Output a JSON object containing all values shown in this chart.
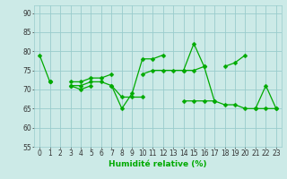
{
  "x": [
    0,
    1,
    2,
    3,
    4,
    5,
    6,
    7,
    8,
    9,
    10,
    11,
    12,
    13,
    14,
    15,
    16,
    17,
    18,
    19,
    20,
    21,
    22,
    23
  ],
  "line1": [
    79,
    72,
    null,
    71,
    70,
    71,
    null,
    71,
    65,
    69,
    78,
    78,
    79,
    null,
    75,
    82,
    76,
    67,
    null,
    null,
    null,
    65,
    71,
    65
  ],
  "line2": [
    null,
    72,
    null,
    72,
    72,
    73,
    73,
    74,
    null,
    null,
    74,
    75,
    75,
    75,
    75,
    75,
    76,
    null,
    76,
    77,
    79,
    null,
    null,
    null
  ],
  "line3": [
    null,
    72,
    null,
    71,
    71,
    72,
    72,
    71,
    68,
    68,
    68,
    null,
    null,
    null,
    67,
    67,
    67,
    67,
    66,
    66,
    65,
    65,
    65,
    65
  ],
  "bg_color": "#cceae7",
  "grid_color": "#99cccc",
  "line_color": "#00aa00",
  "marker": "D",
  "marker_size": 2.5,
  "xlabel": "Humidité relative (%)",
  "xlim": [
    -0.5,
    23.5
  ],
  "ylim": [
    55,
    92
  ],
  "yticks": [
    55,
    60,
    65,
    70,
    75,
    80,
    85,
    90
  ],
  "xticks": [
    0,
    1,
    2,
    3,
    4,
    5,
    6,
    7,
    8,
    9,
    10,
    11,
    12,
    13,
    14,
    15,
    16,
    17,
    18,
    19,
    20,
    21,
    22,
    23
  ]
}
